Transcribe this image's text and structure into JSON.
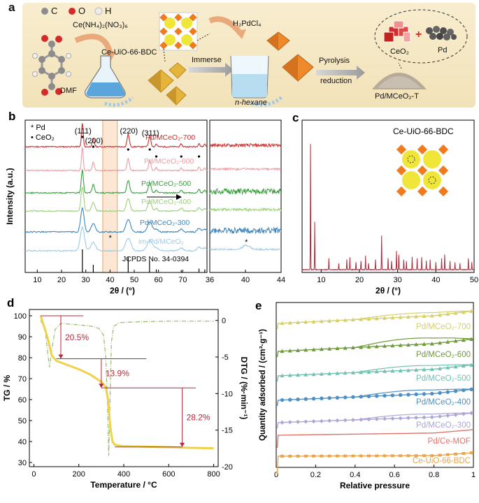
{
  "panel_a": {
    "label": "a",
    "legend": [
      {
        "symbol": "C",
        "color": "#8c8c8c"
      },
      {
        "symbol": "O",
        "color": "#d42a2a"
      },
      {
        "symbol": "H",
        "color": "#e9e9e9"
      }
    ],
    "reagent_ce": "Ce(NH₄)₂(NO₃)₆",
    "mof_name": "Ce-UiO-66-BDC",
    "solvent_dmf": "DMF",
    "step_immerse": "Immerse",
    "reagent_pd": "H₂PdCl₄",
    "solvent_hexane": "n-hexane",
    "step_pyrolysis": "Pyrolysis",
    "step_reduction": "reduction",
    "product": "Pd/MCeO₂-T",
    "inset_ceo2": "CeO₂",
    "inset_pd": "Pd",
    "plus": "+"
  },
  "chart_data": [
    {
      "panel": "b",
      "type": "line",
      "xlabel": "2θ / (°)",
      "ylabel": "Intensity (a.u.)",
      "xlim": [
        5,
        80
      ],
      "xticks": [
        10,
        20,
        30,
        40,
        50,
        60,
        70
      ],
      "zoom_xlim": [
        36,
        44
      ],
      "zoom_xticks": [
        36,
        40,
        44
      ],
      "legend": [
        "* Pd",
        "• CeO₂"
      ],
      "peak_labels": [
        "(111)",
        "(200)",
        "(220)",
        "(311)"
      ],
      "reference": "JCPDS No. 34-0394",
      "series": [
        {
          "name": "Pd/MCeO₂-700",
          "color": "#cf2c2c"
        },
        {
          "name": "Pd/MCeO₂-600",
          "color": "#ef9aa0"
        },
        {
          "name": "Pd/MCeO₂-500",
          "color": "#37a23c"
        },
        {
          "name": "Pd/MCeO₂-400",
          "color": "#9bd07c"
        },
        {
          "name": "Pd/MCeO₂-300",
          "color": "#3f86bb"
        },
        {
          "name": "im-Pd/MCeO₂",
          "color": "#9ccae2"
        }
      ]
    },
    {
      "panel": "c",
      "type": "line",
      "title": "Ce-UiO-66-BDC",
      "xlabel": "2θ / (°)",
      "ylabel": "Intensity (a.u.)",
      "xlim": [
        5,
        50
      ],
      "xticks": [
        10,
        20,
        30,
        40,
        50
      ],
      "peaks": [
        [
          7.2,
          100
        ],
        [
          8.3,
          38
        ],
        [
          12.0,
          9
        ],
        [
          14.6,
          5
        ],
        [
          16.7,
          8
        ],
        [
          17.5,
          10
        ],
        [
          19.1,
          6
        ],
        [
          20.4,
          7
        ],
        [
          21.6,
          11
        ],
        [
          22.4,
          5
        ],
        [
          24.2,
          8
        ],
        [
          25.8,
          27
        ],
        [
          27.5,
          9
        ],
        [
          28.4,
          7
        ],
        [
          29.7,
          15
        ],
        [
          30.3,
          12
        ],
        [
          31.6,
          8
        ],
        [
          32.3,
          7
        ],
        [
          33.8,
          10
        ],
        [
          35.1,
          9
        ],
        [
          36.3,
          10
        ],
        [
          37.5,
          7
        ],
        [
          38.5,
          8
        ],
        [
          40.0,
          6
        ],
        [
          41.5,
          9
        ],
        [
          42.3,
          12
        ],
        [
          43.7,
          7
        ],
        [
          45.0,
          6
        ],
        [
          46.3,
          5
        ],
        [
          48.5,
          9
        ],
        [
          49.4,
          6
        ]
      ],
      "color": "#b5283a"
    },
    {
      "panel": "d",
      "type": "line",
      "xlabel": "Temperature / °C",
      "ylabel": "TG / %",
      "ylabel_right": "DTG / (%·min⁻¹)",
      "xlim": [
        -20,
        820
      ],
      "ylim": [
        28,
        103
      ],
      "y2lim": [
        -20,
        1.5
      ],
      "xticks": [
        0,
        200,
        400,
        600,
        800
      ],
      "yticks": [
        30,
        40,
        50,
        60,
        70,
        80,
        90,
        100
      ],
      "y2ticks": [
        0,
        -5,
        -10,
        -15,
        -20
      ],
      "tg": {
        "x": [
          30,
          60,
          80,
          100,
          150,
          200,
          250,
          300,
          320,
          330,
          340,
          350,
          360,
          380,
          400,
          500,
          600,
          700,
          800
        ],
        "y": [
          100,
          90,
          81,
          78.5,
          76.5,
          74.5,
          72,
          68.5,
          66,
          60,
          47,
          40,
          38.5,
          38,
          37.8,
          37.6,
          37.3,
          37.0,
          36.8
        ]
      },
      "dtg": {
        "x": [
          30,
          50,
          60,
          70,
          80,
          95,
          120,
          200,
          260,
          290,
          310,
          320,
          328,
          333,
          338,
          345,
          355,
          380,
          450,
          600,
          800
        ],
        "y": [
          0,
          -1,
          -4,
          -6.4,
          -4,
          -1.2,
          -0.4,
          -0.6,
          -0.8,
          -1.1,
          -2.0,
          -5,
          -12,
          -18.5,
          -12,
          -3,
          -0.8,
          -0.3,
          -0.2,
          -0.1,
          -0.1
        ]
      },
      "steps": [
        "20.5%",
        "13.9%",
        "28.2%"
      ]
    },
    {
      "panel": "e",
      "type": "line",
      "xlabel": "Relative pressure",
      "ylabel": "Quantity adsorbed / (cm³·g⁻¹)",
      "xlim": [
        0,
        1.0
      ],
      "xticks": [
        0,
        0.2,
        0.4,
        0.6,
        0.8,
        1.0
      ],
      "series": [
        {
          "name": "Pd/MCeO₂-700",
          "color": "#d4d06a"
        },
        {
          "name": "Pd/MCeO₂-600",
          "color": "#6f9a3c"
        },
        {
          "name": "Pd/MCeO₂-500",
          "color": "#6fc2b0"
        },
        {
          "name": "Pd/MCeO₂-400",
          "color": "#4f8fc4"
        },
        {
          "name": "Pd/MCeO₂-300",
          "color": "#aaa6d6"
        },
        {
          "name": "Pd/Ce-MOF",
          "color": "#e0736a"
        },
        {
          "name": "Ce-UiO-66-BDC",
          "color": "#e8a54a"
        }
      ]
    }
  ],
  "labels": {
    "b": "b",
    "c": "c",
    "d": "d",
    "e": "e"
  }
}
